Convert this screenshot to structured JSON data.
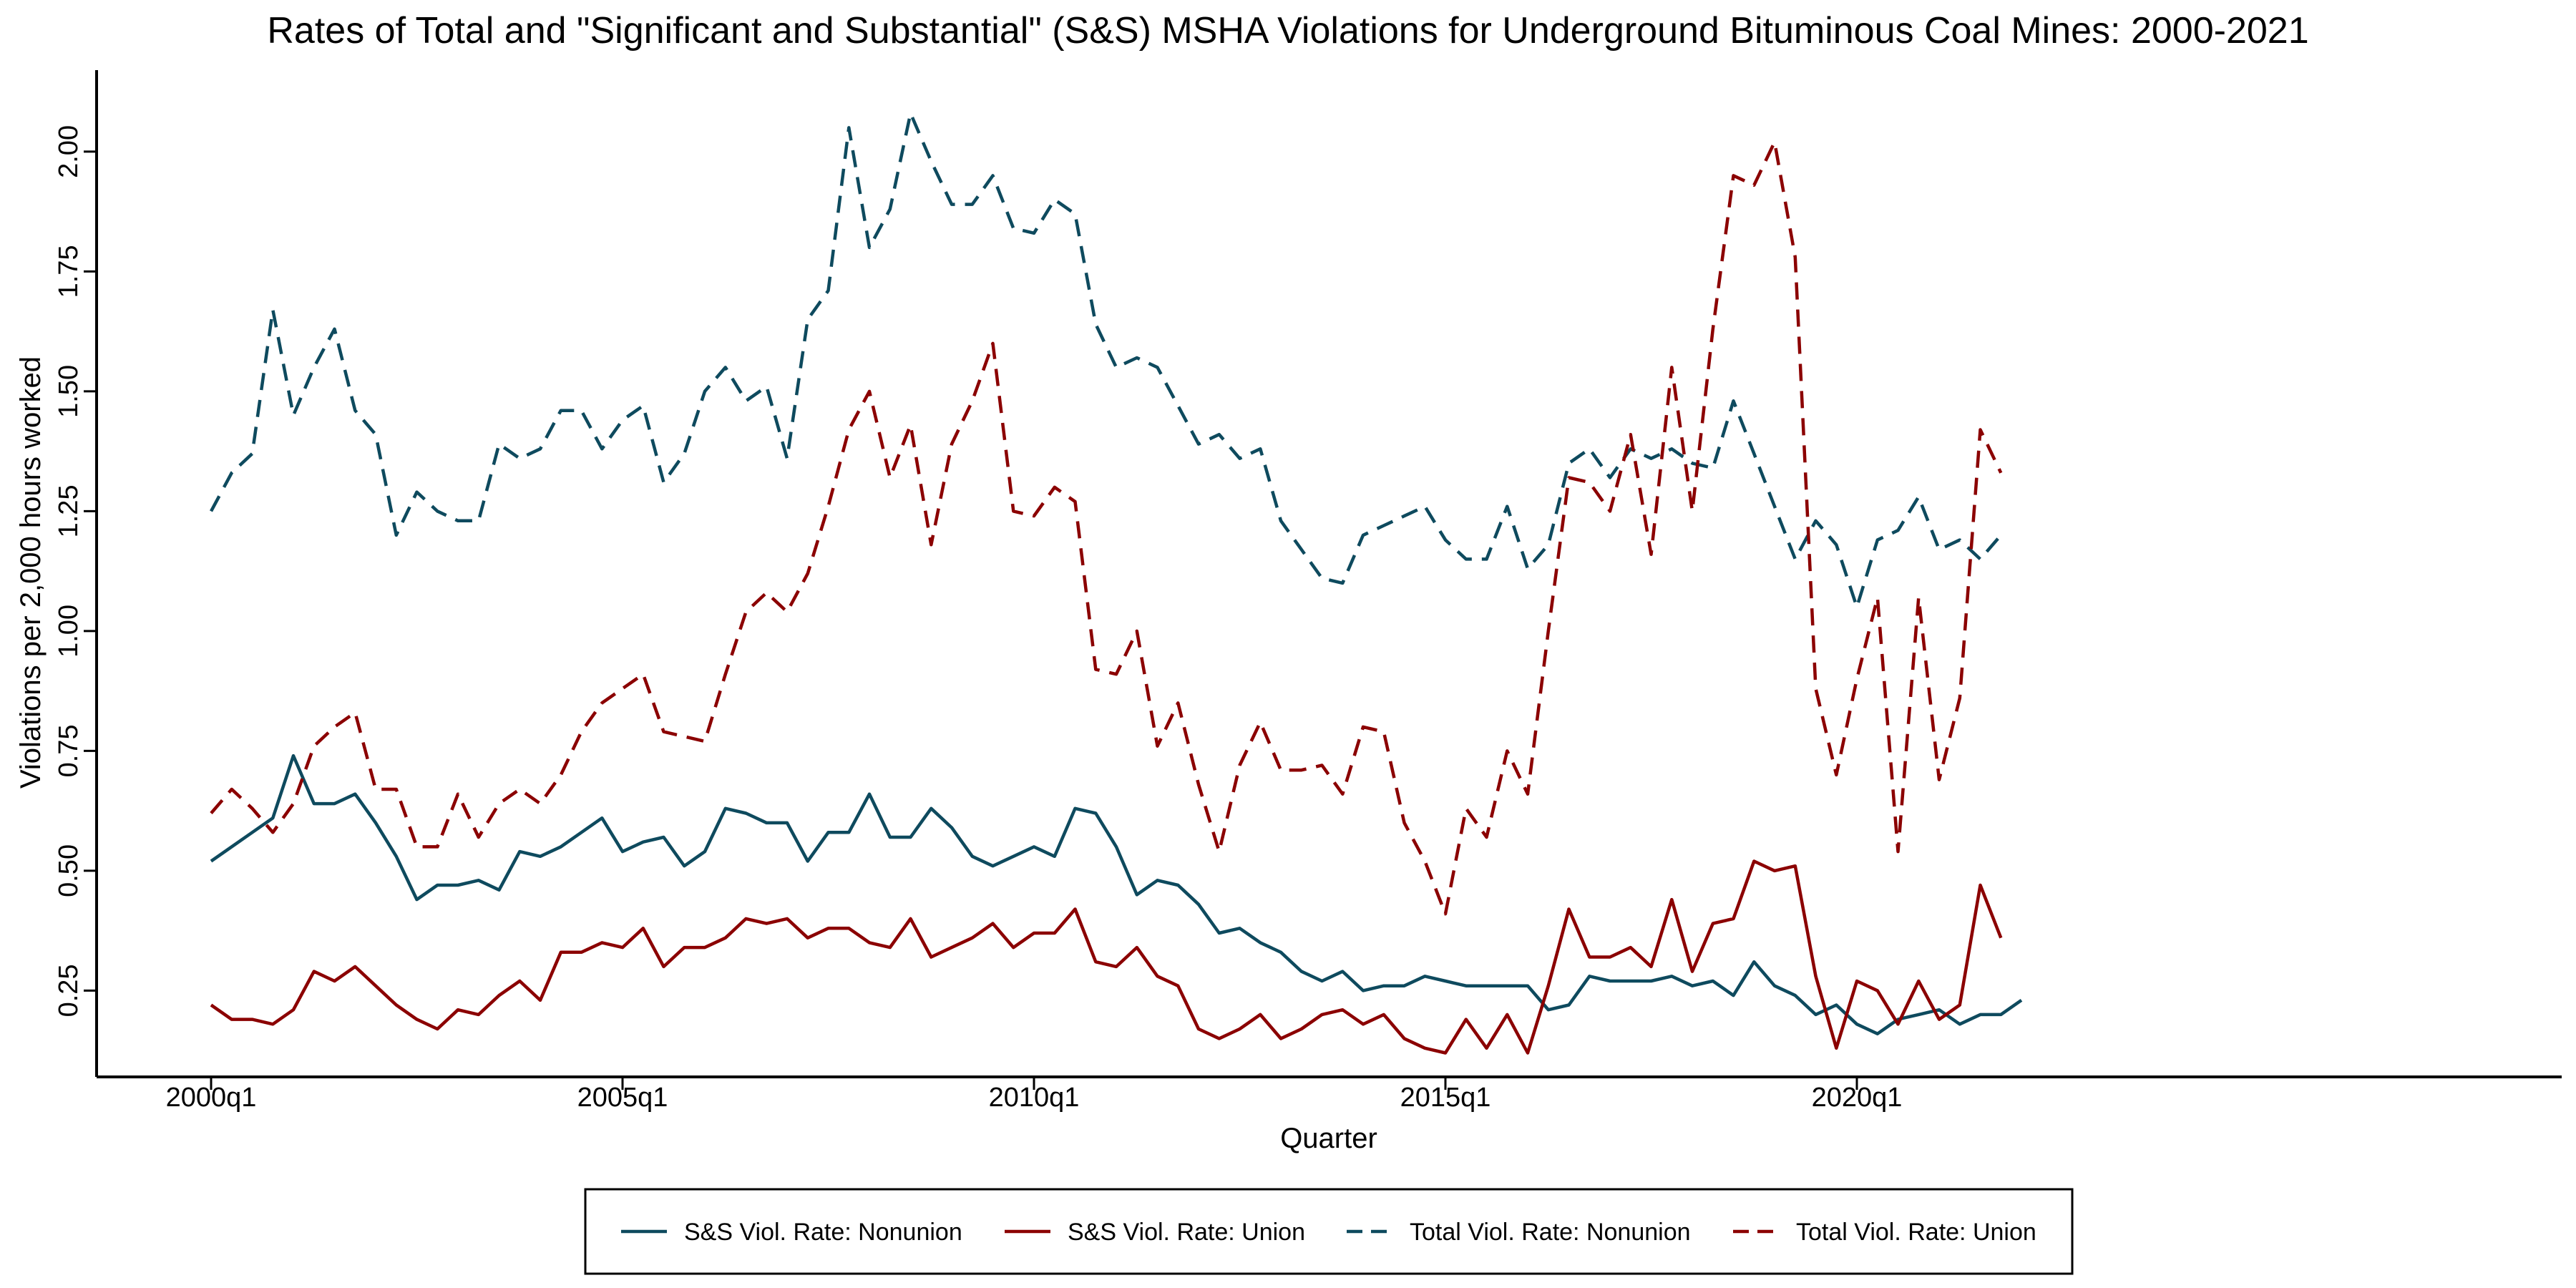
{
  "chart_data": {
    "type": "line",
    "title": "Rates of Total and \"Significant and Substantial\" (S&S) MSHA Violations for Underground Bituminous Coal Mines: 2000-2021",
    "xlabel": "Quarter",
    "ylabel": "Violations per 2,000 hours worked",
    "x_start": "2000q1",
    "x_end": "2021q4",
    "x_ticks": [
      "2000q1",
      "2005q1",
      "2010q1",
      "2015q1",
      "2020q1"
    ],
    "y_ticks": [
      "0.25",
      "0.50",
      "0.75",
      "1.00",
      "1.25",
      "1.50",
      "1.75",
      "2.00"
    ],
    "ylim": [
      0.07,
      2.17
    ],
    "grid": false,
    "legend_position": "bottom",
    "series": [
      {
        "name": "S&S Viol. Rate: Nonunion",
        "color": "#0e4a5e",
        "dash": "solid",
        "values": [
          0.52,
          0.55,
          0.58,
          0.61,
          0.74,
          0.64,
          0.64,
          0.66,
          0.6,
          0.53,
          0.44,
          0.47,
          0.47,
          0.48,
          0.46,
          0.54,
          0.53,
          0.55,
          0.58,
          0.61,
          0.54,
          0.56,
          0.57,
          0.51,
          0.54,
          0.63,
          0.62,
          0.6,
          0.6,
          0.52,
          0.58,
          0.58,
          0.66,
          0.57,
          0.57,
          0.63,
          0.59,
          0.53,
          0.51,
          0.53,
          0.55,
          0.53,
          0.63,
          0.62,
          0.55,
          0.45,
          0.48,
          0.47,
          0.43,
          0.37,
          0.38,
          0.35,
          0.33,
          0.29,
          0.27,
          0.29,
          0.25,
          0.26,
          0.26,
          0.28,
          0.27,
          0.26,
          0.26,
          0.26,
          0.26,
          0.21,
          0.22,
          0.28,
          0.27,
          0.27,
          0.27,
          0.28,
          0.26,
          0.27,
          0.24,
          0.31,
          0.26,
          0.24,
          0.2,
          0.22,
          0.18,
          0.16,
          0.19,
          0.2,
          0.21,
          0.18,
          0.2,
          0.2,
          0.23
        ]
      },
      {
        "name": "S&S Viol. Rate: Union",
        "color": "#8b0000",
        "dash": "solid",
        "values": [
          0.22,
          0.19,
          0.19,
          0.18,
          0.21,
          0.29,
          0.27,
          0.3,
          0.26,
          0.22,
          0.19,
          0.17,
          0.21,
          0.2,
          0.24,
          0.27,
          0.23,
          0.33,
          0.33,
          0.35,
          0.34,
          0.38,
          0.3,
          0.34,
          0.34,
          0.36,
          0.4,
          0.39,
          0.4,
          0.36,
          0.38,
          0.38,
          0.35,
          0.34,
          0.4,
          0.32,
          0.34,
          0.36,
          0.39,
          0.34,
          0.37,
          0.37,
          0.42,
          0.31,
          0.3,
          0.34,
          0.28,
          0.26,
          0.17,
          0.15,
          0.17,
          0.2,
          0.15,
          0.17,
          0.2,
          0.21,
          0.18,
          0.2,
          0.15,
          0.13,
          0.12,
          0.19,
          0.13,
          0.2,
          0.12,
          0.26,
          0.42,
          0.32,
          0.32,
          0.34,
          0.3,
          0.44,
          0.29,
          0.39,
          0.4,
          0.52,
          0.5,
          0.51,
          0.28,
          0.13,
          0.27,
          0.25,
          0.18,
          0.27,
          0.19,
          0.22,
          0.47,
          0.36
        ]
      },
      {
        "name": "Total Viol. Rate: Nonunion",
        "color": "#0e4a5e",
        "dash": "dashed",
        "values": [
          1.25,
          1.33,
          1.37,
          1.67,
          1.45,
          1.55,
          1.63,
          1.46,
          1.41,
          1.2,
          1.29,
          1.25,
          1.23,
          1.23,
          1.39,
          1.36,
          1.38,
          1.46,
          1.46,
          1.38,
          1.44,
          1.47,
          1.31,
          1.37,
          1.5,
          1.55,
          1.48,
          1.51,
          1.36,
          1.65,
          1.71,
          2.05,
          1.8,
          1.88,
          2.08,
          1.98,
          1.89,
          1.89,
          1.95,
          1.84,
          1.83,
          1.9,
          1.87,
          1.64,
          1.55,
          1.57,
          1.55,
          1.47,
          1.39,
          1.41,
          1.36,
          1.38,
          1.23,
          1.17,
          1.11,
          1.1,
          1.2,
          1.22,
          1.24,
          1.26,
          1.19,
          1.15,
          1.15,
          1.26,
          1.13,
          1.18,
          1.35,
          1.38,
          1.32,
          1.38,
          1.36,
          1.38,
          1.35,
          1.34,
          1.48,
          1.37,
          1.26,
          1.15,
          1.23,
          1.18,
          1.05,
          1.19,
          1.21,
          1.28,
          1.17,
          1.19,
          1.15,
          1.2
        ]
      },
      {
        "name": "Total Viol. Rate: Union",
        "color": "#8b0000",
        "dash": "dashed",
        "values": [
          0.62,
          0.67,
          0.63,
          0.58,
          0.64,
          0.76,
          0.8,
          0.83,
          0.67,
          0.67,
          0.55,
          0.55,
          0.66,
          0.57,
          0.64,
          0.67,
          0.64,
          0.7,
          0.79,
          0.85,
          0.88,
          0.91,
          0.79,
          0.78,
          0.77,
          0.91,
          1.04,
          1.08,
          1.04,
          1.12,
          1.26,
          1.42,
          1.5,
          1.32,
          1.43,
          1.18,
          1.39,
          1.48,
          1.6,
          1.25,
          1.24,
          1.3,
          1.27,
          0.92,
          0.91,
          1.0,
          0.76,
          0.85,
          0.68,
          0.54,
          0.72,
          0.81,
          0.71,
          0.71,
          0.72,
          0.66,
          0.8,
          0.79,
          0.6,
          0.52,
          0.41,
          0.63,
          0.57,
          0.75,
          0.66,
          1.0,
          1.32,
          1.31,
          1.25,
          1.41,
          1.16,
          1.55,
          1.25,
          1.63,
          1.95,
          1.93,
          2.02,
          1.78,
          0.88,
          0.7,
          0.9,
          1.07,
          0.54,
          1.07,
          0.69,
          0.86,
          1.42,
          1.33
        ]
      }
    ]
  }
}
